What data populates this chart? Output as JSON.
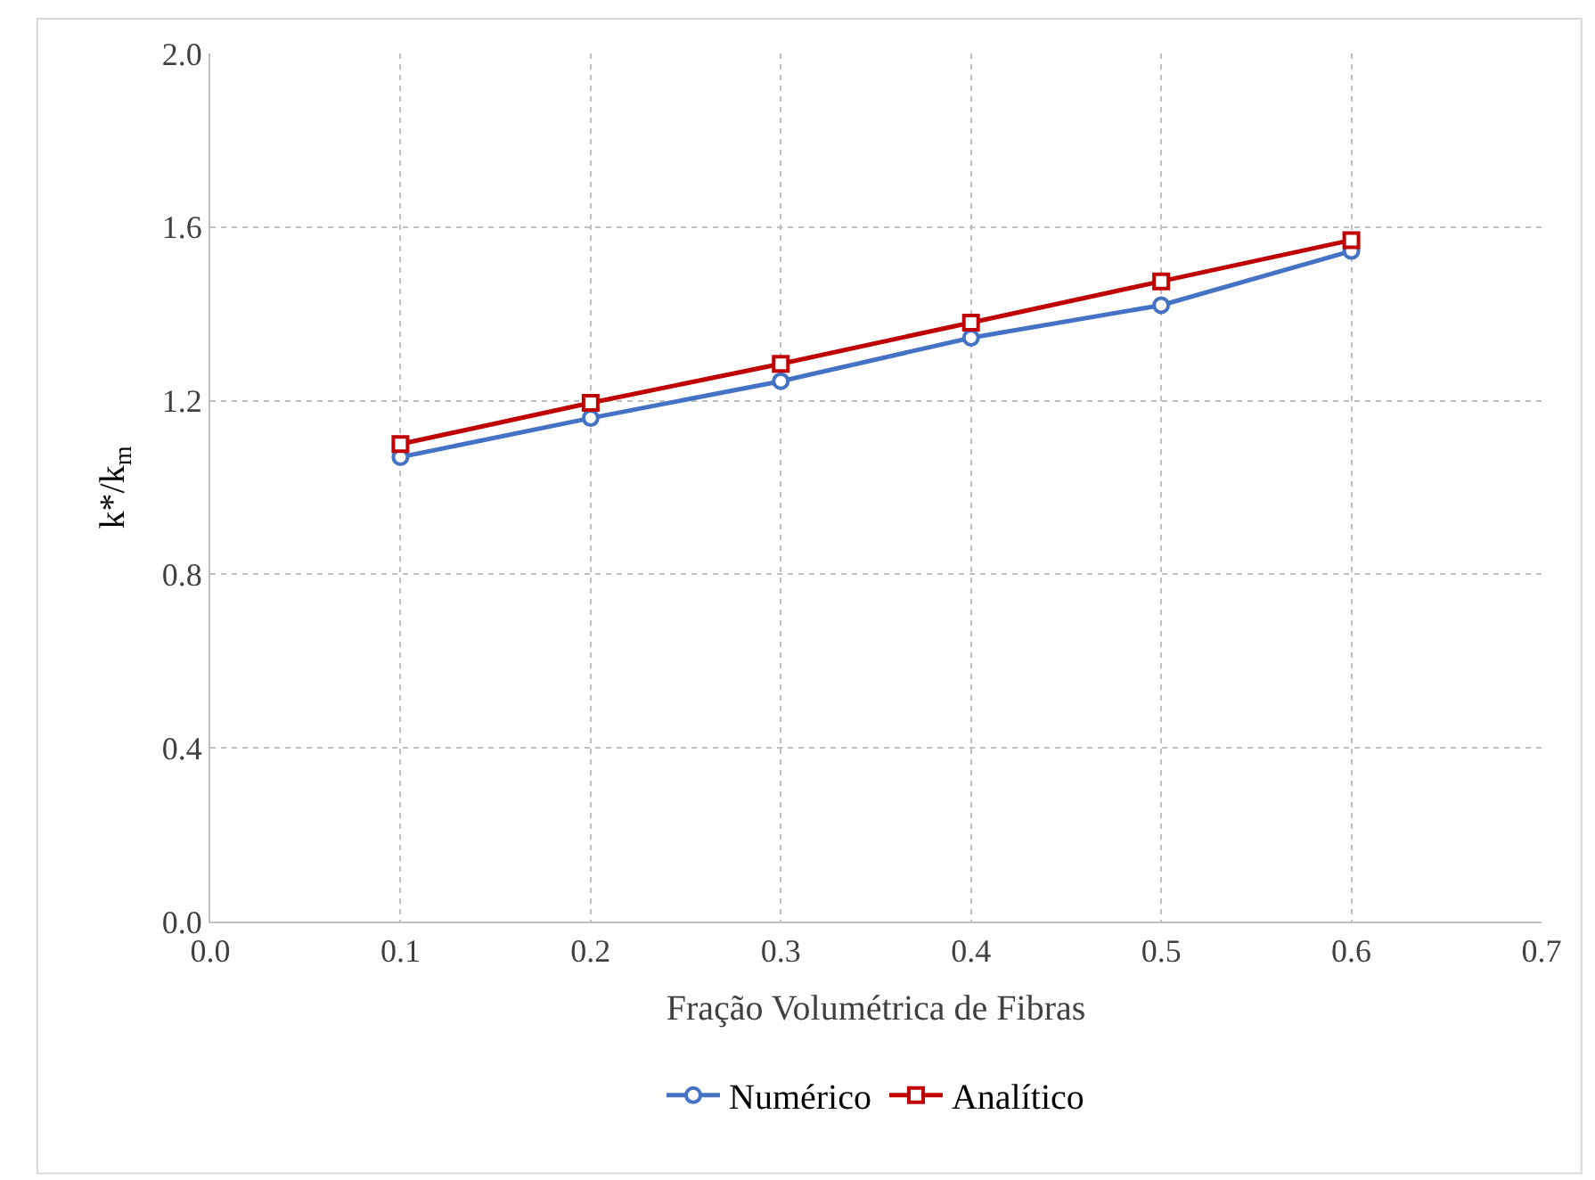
{
  "chart_data": {
    "type": "line",
    "xlabel": "Fração Volumétrica de Fibras",
    "ylabel": "k*/k$_{m}$",
    "x": [
      0.1,
      0.2,
      0.3,
      0.4,
      0.5,
      0.6
    ],
    "series": [
      {
        "name": "Numérico",
        "color": "#4472c4",
        "marker": "circle",
        "values": [
          1.07,
          1.16,
          1.245,
          1.345,
          1.42,
          1.545
        ]
      },
      {
        "name": "Analítico",
        "color": "#c00000",
        "marker": "square",
        "values": [
          1.1,
          1.195,
          1.285,
          1.38,
          1.475,
          1.57
        ]
      }
    ],
    "xlim": [
      0.0,
      0.7
    ],
    "xticks": [
      "0.0",
      0.1,
      0.2,
      0.3,
      0.4,
      0.5,
      0.6,
      0.7
    ],
    "ylim": [
      0.0,
      2.0
    ],
    "yticks": [
      "0.0",
      0.4,
      0.8,
      1.2,
      1.6,
      "2.0"
    ],
    "grid": true,
    "legend": "bottom",
    "line_style": "solid"
  }
}
